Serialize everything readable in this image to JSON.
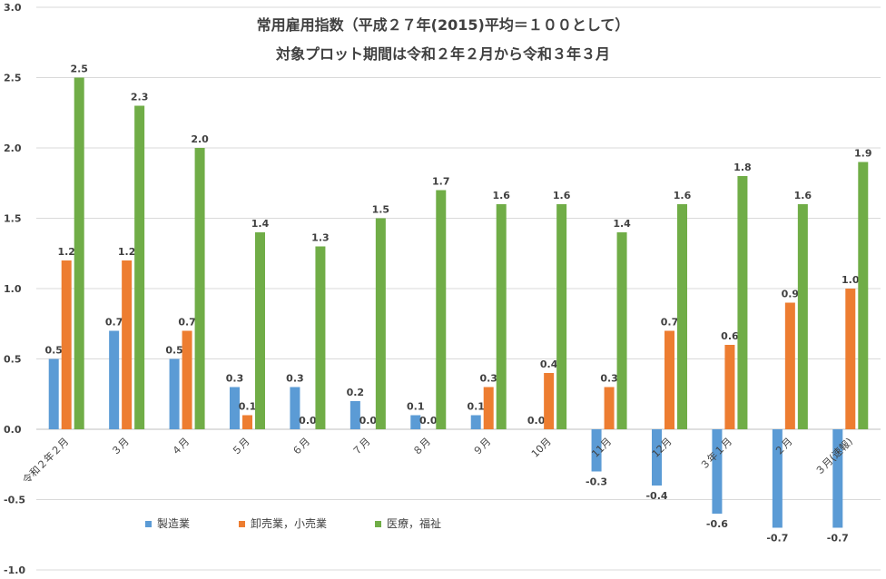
{
  "chart_data": {
    "type": "bar",
    "title": "常用雇用指数（平成２７年(2015)平均＝１００として）",
    "subtitle": "対象プロット期間は令和２年２月から令和３年３月",
    "xlabel": "",
    "ylabel": "",
    "ylim": [
      -1.0,
      3.0
    ],
    "y_ticks": [
      "-1.0",
      "-0.5",
      "0.0",
      "0.5",
      "1.0",
      "1.5",
      "2.0",
      "2.5",
      "3.0"
    ],
    "grid": true,
    "legend_position": "bottom-left",
    "categories": [
      "令和２年２月",
      "３月",
      "４月",
      "５月",
      "６月",
      "７月",
      "８月",
      "９月",
      "10月",
      "11月",
      "12月",
      "３年１月",
      "２月",
      "３月(速報)"
    ],
    "series": [
      {
        "name": "製造業",
        "color": "#5b9bd5",
        "values": [
          0.5,
          0.7,
          0.5,
          0.3,
          0.3,
          0.2,
          0.1,
          0.1,
          null,
          -0.3,
          -0.4,
          -0.6,
          -0.7,
          -0.7
        ],
        "labels": [
          "0.5",
          "0.7",
          "0.5",
          "0.3",
          "0.3",
          "0.2",
          "0.1",
          "0.1",
          "0.0",
          "-0.3",
          "-0.4",
          "-0.6",
          "-0.7",
          "-0.7"
        ]
      },
      {
        "name": "卸売業，小売業",
        "color": "#ed7d31",
        "values": [
          1.2,
          1.2,
          0.7,
          0.1,
          0.0,
          0.0,
          0.0,
          0.3,
          0.4,
          0.3,
          0.7,
          0.6,
          0.9,
          1.0
        ],
        "labels": [
          "1.2",
          "1.2",
          "0.7",
          "0.1",
          "0.0",
          "0.0",
          "0.0",
          "0.3",
          "0.4",
          "0.3",
          "0.7",
          "0.6",
          "0.9",
          "1.0"
        ]
      },
      {
        "name": "医療，福祉",
        "color": "#70ad47",
        "values": [
          2.5,
          2.3,
          2.0,
          1.4,
          1.3,
          1.5,
          1.7,
          1.6,
          1.6,
          1.4,
          1.6,
          1.8,
          1.6,
          1.9
        ],
        "labels": [
          "2.5",
          "2.3",
          "2.0",
          "1.4",
          "1.3",
          "1.5",
          "1.7",
          "1.6",
          "1.6",
          "1.4",
          "1.6",
          "1.8",
          "1.6",
          "1.9"
        ]
      }
    ]
  }
}
